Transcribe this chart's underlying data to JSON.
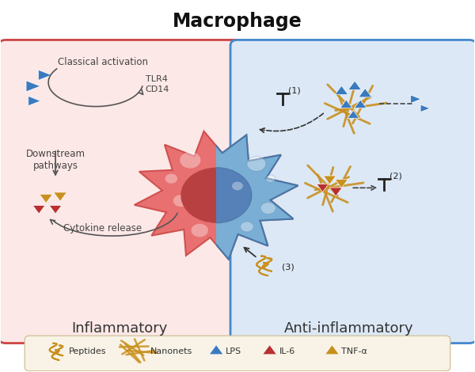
{
  "title": "Macrophage",
  "title_fontsize": 17,
  "title_fontweight": "bold",
  "left_label": "Inflammatory",
  "right_label": "Anti-inflammatory",
  "left_bg": "#fce8e6",
  "right_bg": "#dce8f5",
  "left_border": "#c44",
  "right_border": "#4488cc",
  "cell_pink": "#e87070",
  "cell_pink_edge": "#d05050",
  "cell_blue": "#7aaed4",
  "cell_blue_edge": "#4477aa",
  "nucleus_dark_red": "#b84040",
  "nucleus_blue": "#5580b8",
  "legend_bg": "#f8f3e6",
  "legend_border": "#d4c4a0",
  "lps_blue": "#3a7abf",
  "il6_red": "#b83030",
  "tnf_gold": "#c89020",
  "peptide_gold": "#c89020",
  "spot_alpha": 0.25,
  "texts": {
    "classical_activation": "Classical activation",
    "tlr4_cd14": "TLR4\nCD14",
    "downstream": "Downstream\npathways",
    "cytokine_release": "Cytokine release",
    "a1": "(1)",
    "a2": "(2)",
    "a3": "(3)"
  },
  "fig_w": 6.0,
  "fig_h": 4.7,
  "dpi": 100
}
